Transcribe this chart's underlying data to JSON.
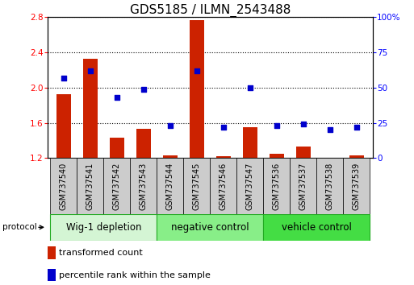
{
  "title": "GDS5185 / ILMN_2543488",
  "samples": [
    "GSM737540",
    "GSM737541",
    "GSM737542",
    "GSM737543",
    "GSM737544",
    "GSM737545",
    "GSM737546",
    "GSM737547",
    "GSM737536",
    "GSM737537",
    "GSM737538",
    "GSM737539"
  ],
  "bar_values": [
    1.93,
    2.33,
    1.43,
    1.53,
    1.23,
    2.77,
    1.22,
    1.55,
    1.25,
    1.33,
    1.2,
    1.23
  ],
  "dot_values": [
    57,
    62,
    43,
    49,
    23,
    62,
    22,
    50,
    23,
    24,
    20,
    22
  ],
  "ylim_left": [
    1.2,
    2.8
  ],
  "ylim_right": [
    0,
    100
  ],
  "yticks_left": [
    1.2,
    1.6,
    2.0,
    2.4,
    2.8
  ],
  "yticks_right": [
    0,
    25,
    50,
    75,
    100
  ],
  "groups": [
    {
      "label": "Wig-1 depletion",
      "start": 0,
      "end": 4,
      "color": "#d4f5d4"
    },
    {
      "label": "negative control",
      "start": 4,
      "end": 8,
      "color": "#88ee88"
    },
    {
      "label": "vehicle control",
      "start": 8,
      "end": 12,
      "color": "#44dd44"
    }
  ],
  "bar_color": "#cc2200",
  "dot_color": "#0000cc",
  "bar_bottom": 1.2,
  "protocol_label": "protocol",
  "legend_bar_label": "transformed count",
  "legend_dot_label": "percentile rank within the sample",
  "sample_bg_color": "#cccccc",
  "title_fontsize": 11,
  "tick_fontsize": 7.5,
  "label_fontsize": 7,
  "group_label_fontsize": 8.5,
  "group_border_color": "#22aa22"
}
